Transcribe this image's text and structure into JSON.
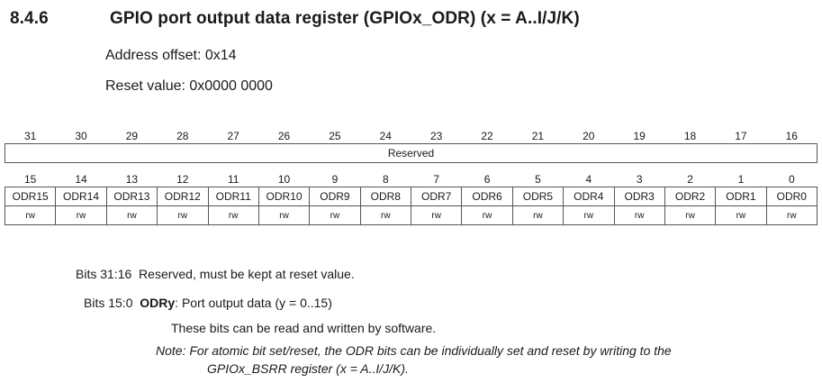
{
  "section": {
    "number": "8.4.6",
    "title": "GPIO port output data register (GPIOx_ODR) (x = A..I/J/K)",
    "address_offset": "Address offset: 0x14",
    "reset_value": "Reset value: 0x0000 0000"
  },
  "register": {
    "upper_bit_numbers": [
      "31",
      "30",
      "29",
      "28",
      "27",
      "26",
      "25",
      "24",
      "23",
      "22",
      "21",
      "20",
      "19",
      "18",
      "17",
      "16"
    ],
    "upper_field": "Reserved",
    "lower_bit_numbers": [
      "15",
      "14",
      "13",
      "12",
      "11",
      "10",
      "9",
      "8",
      "7",
      "6",
      "5",
      "4",
      "3",
      "2",
      "1",
      "0"
    ],
    "lower_fields": [
      "ODR15",
      "ODR14",
      "ODR13",
      "ODR12",
      "ODR11",
      "ODR10",
      "ODR9",
      "ODR8",
      "ODR7",
      "ODR6",
      "ODR5",
      "ODR4",
      "ODR3",
      "ODR2",
      "ODR1",
      "ODR0"
    ],
    "access": [
      "rw",
      "rw",
      "rw",
      "rw",
      "rw",
      "rw",
      "rw",
      "rw",
      "rw",
      "rw",
      "rw",
      "rw",
      "rw",
      "rw",
      "rw",
      "rw"
    ]
  },
  "description": {
    "bits_31_16_label": "Bits 31:16",
    "bits_31_16_text": "Reserved, must be kept at reset value.",
    "bits_15_0_label": "Bits 15:0",
    "bits_15_0_name": "ODRy",
    "bits_15_0_text": ": Port output data (y = 0..15)",
    "rw_text": "These bits can be read and written by software.",
    "note_line1": "Note:  For atomic bit set/reset, the ODR bits can be individually set and reset by writing to the",
    "note_line2": "GPIOx_BSRR register (x = A..I/J/K)."
  }
}
